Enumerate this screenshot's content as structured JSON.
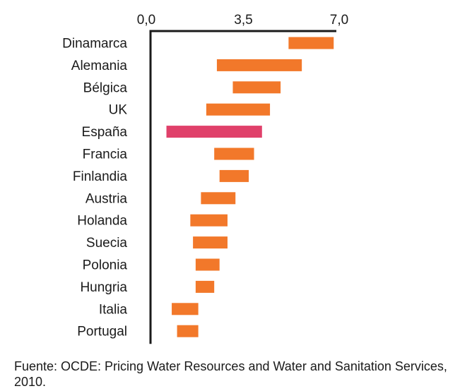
{
  "chart_data": {
    "type": "bar",
    "orientation": "horizontal",
    "bar_style": "floating-range",
    "x_ticks": [
      "0,0",
      "3,5",
      "7,0"
    ],
    "xlim": [
      0,
      7
    ],
    "categories": [
      "Dinamarca",
      "Alemania",
      "Bélgica",
      "UK",
      "España",
      "Francia",
      "Finlandia",
      "Austria",
      "Holanda",
      "Suecia",
      "Polonia",
      "Hungria",
      "Italia",
      "Portugal"
    ],
    "ranges": [
      [
        5.2,
        6.9
      ],
      [
        2.5,
        5.7
      ],
      [
        3.1,
        4.9
      ],
      [
        2.1,
        4.5
      ],
      [
        0.6,
        4.2
      ],
      [
        2.4,
        3.9
      ],
      [
        2.6,
        3.7
      ],
      [
        1.9,
        3.2
      ],
      [
        1.5,
        2.9
      ],
      [
        1.6,
        2.9
      ],
      [
        1.7,
        2.6
      ],
      [
        1.7,
        2.4
      ],
      [
        0.8,
        1.8
      ],
      [
        1.0,
        1.8
      ]
    ],
    "highlight": "España",
    "colors": {
      "default": "#f2782a",
      "highlight": "#e0406a",
      "axis": "#1a1a1a"
    }
  },
  "source": "Fuente: OCDE: Pricing Water Resources and Water and Sanitation Services, 2010."
}
